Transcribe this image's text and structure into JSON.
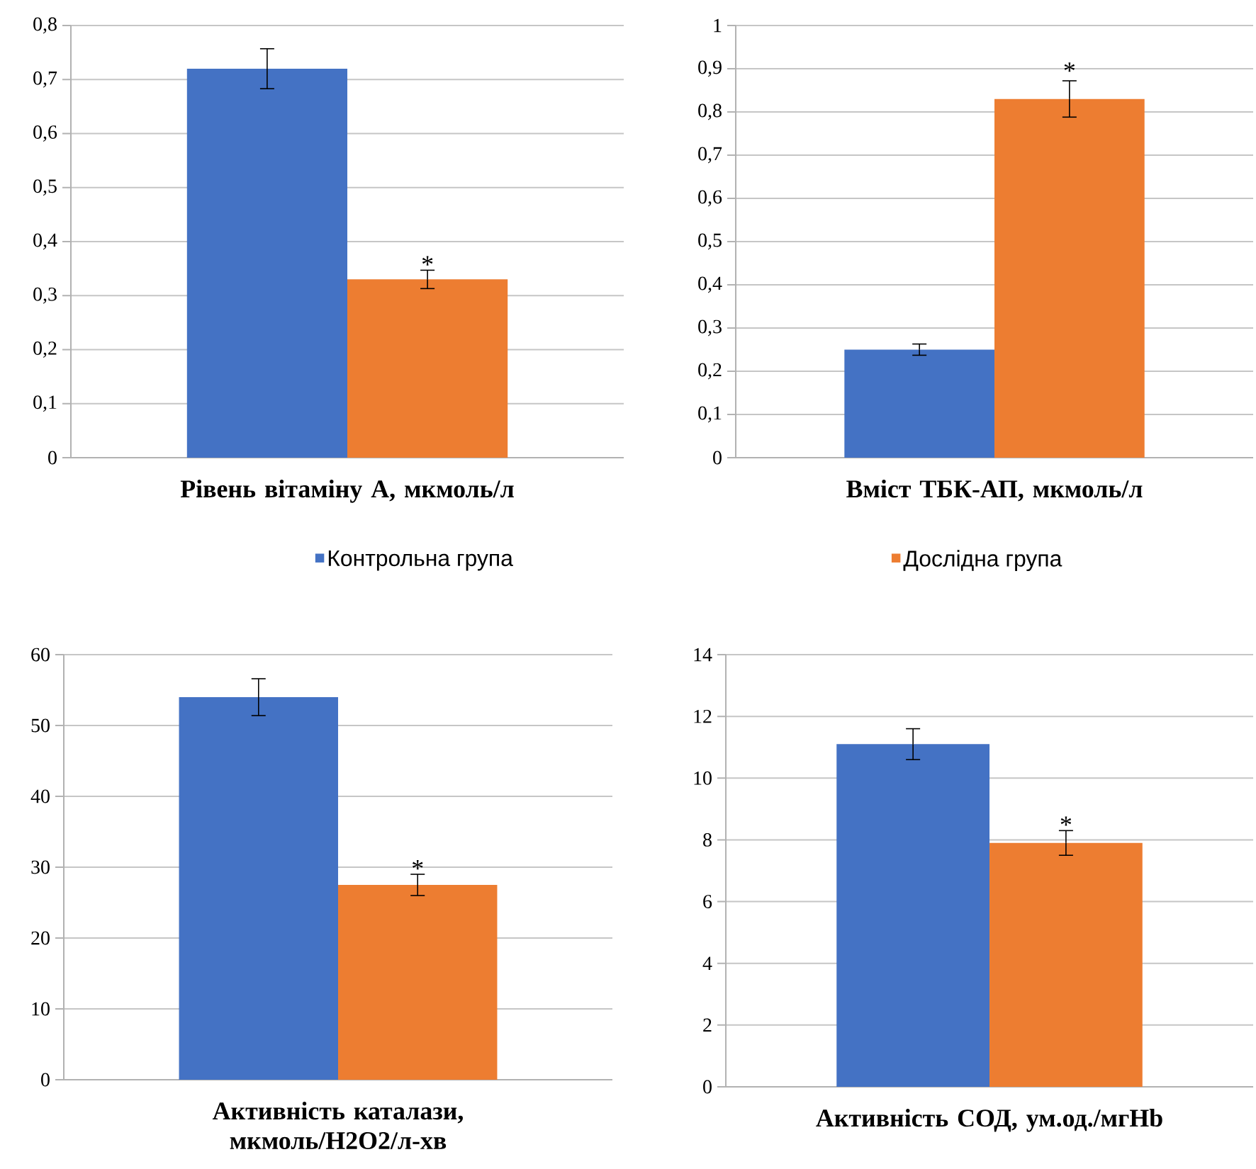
{
  "chart_data": [
    {
      "type": "bar",
      "categories": [
        "Рівень вітаміну А, мкмоль/л"
      ],
      "series": [
        {
          "name": "Контрольна група",
          "color": "#4472c4",
          "values": [
            0.72
          ],
          "errors": [
            0.037
          ]
        },
        {
          "name": "Дослідна група",
          "color": "#ed7d31",
          "values": [
            0.33
          ],
          "errors": [
            0.017
          ]
        }
      ],
      "ylim": [
        0,
        0.8
      ],
      "yticks": [
        0,
        {
          "value": 0.1,
          "label": "0,1"
        },
        {
          "value": 0.2,
          "label": "0,2"
        },
        {
          "value": 0.3,
          "label": "0,3"
        },
        {
          "value": 0.4,
          "label": "0,4"
        },
        {
          "value": 0.5,
          "label": "0,5"
        },
        {
          "value": 0.6,
          "label": "0,6"
        },
        {
          "value": 0.7,
          "label": "0,7"
        },
        {
          "value": 0.8,
          "label": "0,8"
        }
      ],
      "grid": "y",
      "legend": "bottom",
      "annotations": [
        {
          "text": "*",
          "x": "Рівень вітаміну А, мкмоль/л",
          "y": 0.347
        }
      ]
    },
    {
      "type": "bar",
      "categories": [
        "Вміст ТБК-АП, мкмоль/л"
      ],
      "series": [
        {
          "color": "#4472c4",
          "values": [
            0.25
          ],
          "errors": [
            0.013
          ]
        },
        {
          "color": "#ed7d31",
          "values": [
            0.83
          ],
          "errors": [
            0.042
          ]
        }
      ],
      "ylim": [
        0,
        1
      ],
      "yticks": [
        0,
        {
          "value": 0.1,
          "label": "0,1"
        },
        {
          "value": 0.2,
          "label": "0,2"
        },
        {
          "value": 0.3,
          "label": "0,3"
        },
        {
          "value": 0.4,
          "label": "0,4"
        },
        {
          "value": 0.5,
          "label": "0,5"
        },
        {
          "value": 0.6,
          "label": "0,6"
        },
        {
          "value": 0.7,
          "label": "0,7"
        },
        {
          "value": 0.8,
          "label": "0,8"
        },
        {
          "value": 0.9,
          "label": "0,9"
        },
        1
      ],
      "grid": "y",
      "annotations": [
        "*"
      ]
    },
    {
      "type": "bar",
      "categories": [
        "Активність каталази, мкмоль/Н2О2/л-хв"
      ],
      "series": [
        {
          "color": "#4472c4",
          "values": [
            54
          ],
          "errors": [
            2.6
          ]
        },
        {
          "color": "#ed7d31",
          "values": [
            27.5
          ],
          "errors": [
            1.5
          ]
        }
      ],
      "ylim": [
        0,
        60
      ],
      "yticks": [
        0,
        10,
        20,
        30,
        40,
        50,
        60
      ],
      "grid": "y",
      "annotations": [
        {
          "text": "*",
          "x": "Активність каталази, мкмоль/Н2О2/л-хв",
          "y": 29
        }
      ]
    },
    {
      "type": "bar",
      "categories": [
        "Активність СОД, ум.од./мгHb"
      ],
      "series": [
        {
          "color": "#4472c4",
          "values": [
            11.1
          ],
          "errors": [
            0.5
          ]
        },
        {
          "color": "#ed7d31",
          "values": [
            7.9
          ],
          "errors": [
            0.4
          ]
        }
      ],
      "ylim": [
        0,
        14
      ],
      "yticks": [
        0,
        2,
        4,
        6,
        8,
        10,
        12,
        14
      ],
      "grid": "y",
      "annotations": [
        {
          "text": "*",
          "x": "Активність СОД, ум.од./мгHb",
          "y": 8.3
        }
      ]
    }
  ]
}
